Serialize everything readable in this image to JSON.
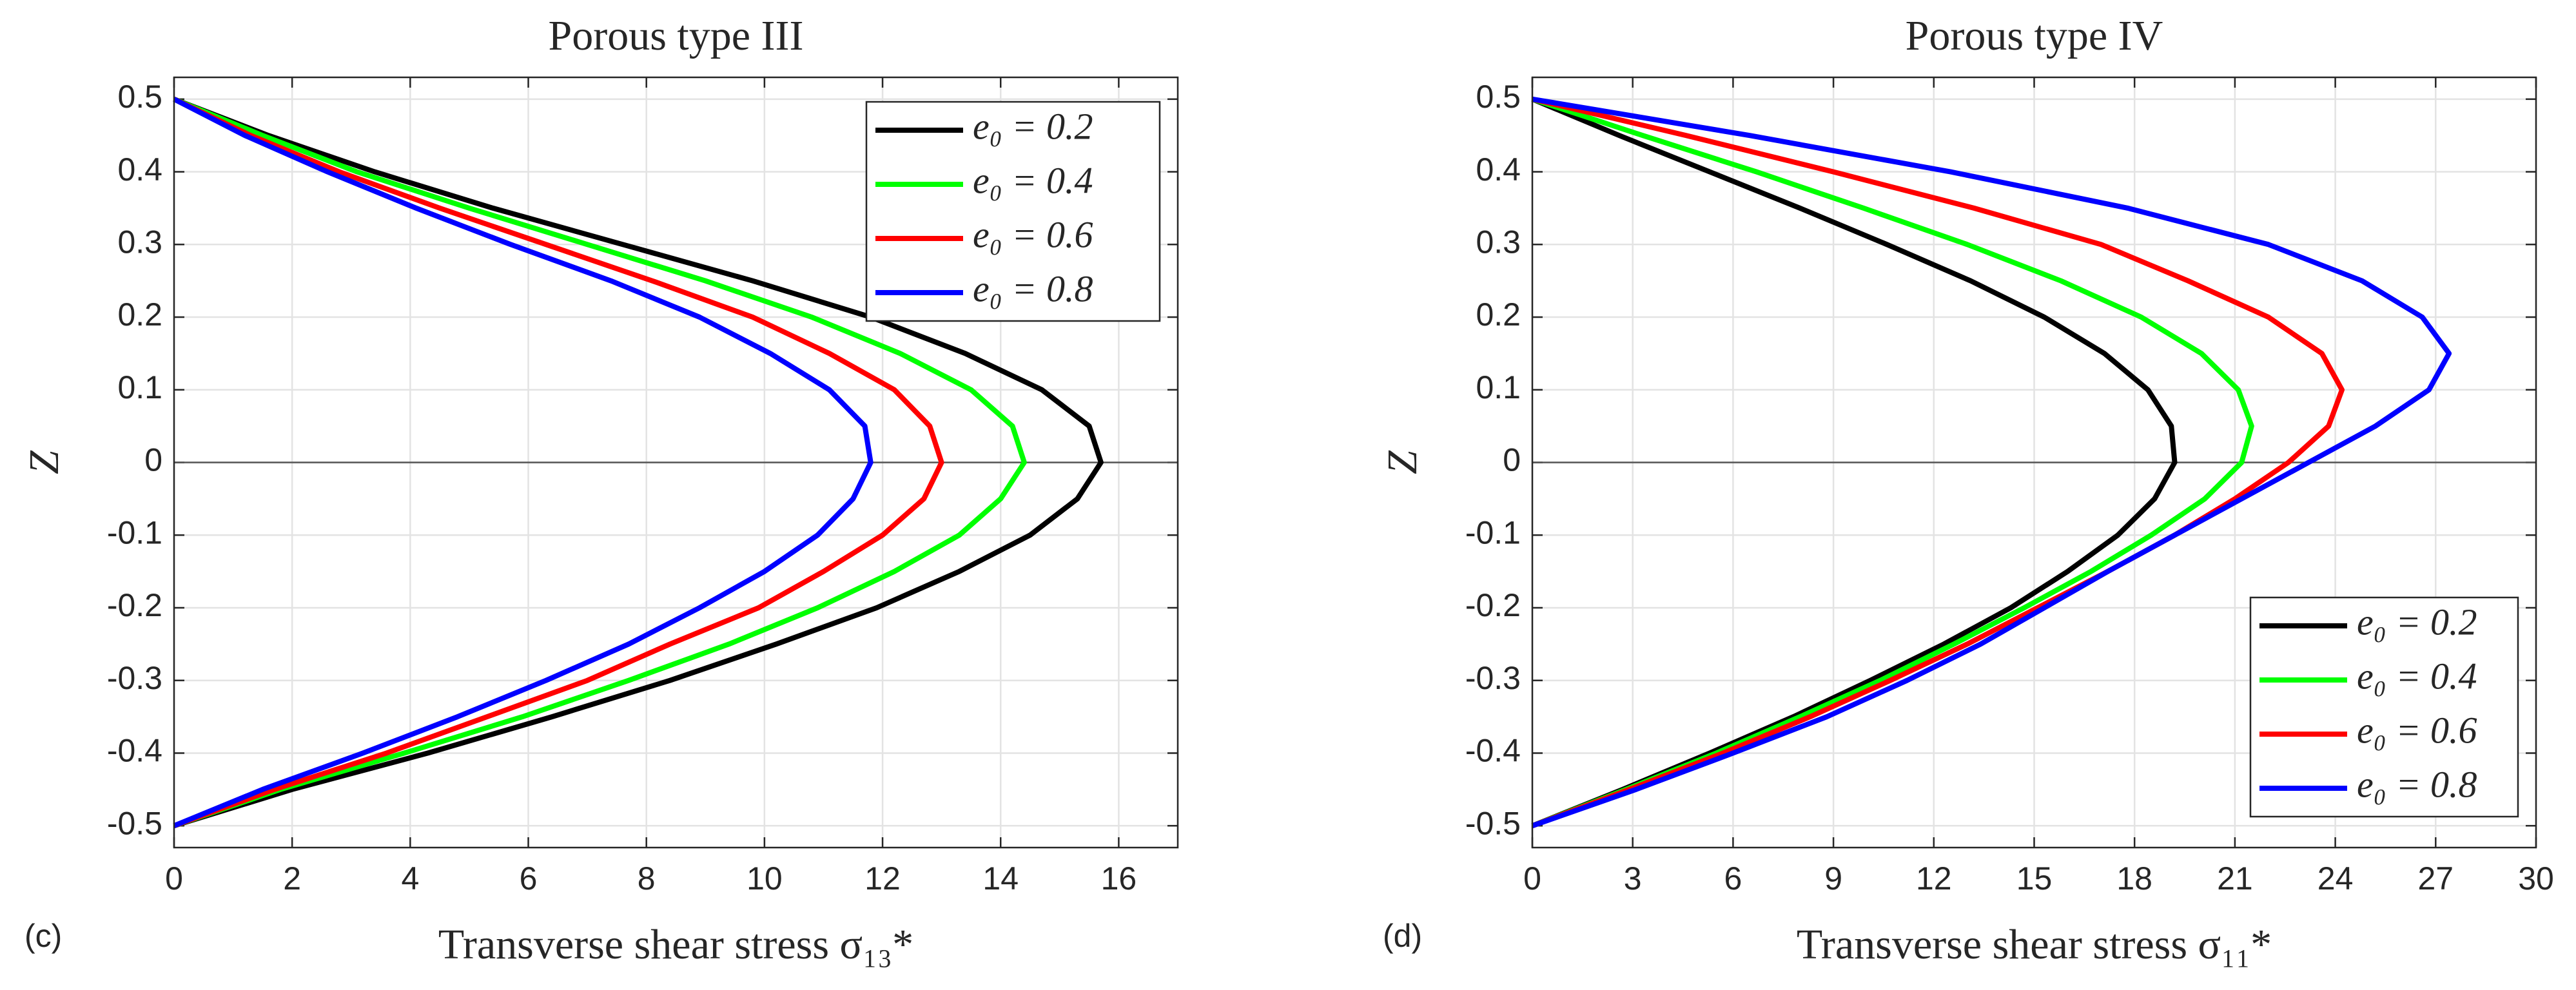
{
  "chart_data": [
    {
      "type": "line",
      "title": "Porous type III",
      "label": "(c)",
      "xlabel": "Transverse shear stress σ₁₃*",
      "ylabel": "Z",
      "y": [
        -0.5,
        -0.45,
        -0.4,
        -0.35,
        -0.3,
        -0.25,
        -0.2,
        -0.15,
        -0.1,
        -0.05,
        0,
        0.05,
        0.1,
        0.15,
        0.2,
        0.25,
        0.3,
        0.35,
        0.4,
        0.45,
        0.5
      ],
      "series": [
        {
          "name": "e₀ = 0.2",
          "color": "#000000",
          "values": [
            0,
            2.0,
            4.3,
            6.4,
            8.4,
            10.2,
            11.9,
            13.3,
            14.5,
            15.3,
            15.7,
            15.5,
            14.7,
            13.4,
            11.8,
            9.8,
            7.6,
            5.4,
            3.4,
            1.6,
            0
          ]
        },
        {
          "name": "e₀ = 0.4",
          "color": "#00ff00",
          "values": [
            0,
            1.8,
            3.9,
            5.9,
            7.7,
            9.4,
            10.9,
            12.2,
            13.3,
            14.0,
            14.4,
            14.2,
            13.5,
            12.3,
            10.8,
            9.0,
            7.0,
            5.0,
            3.1,
            1.5,
            0
          ]
        },
        {
          "name": "e₀ = 0.6",
          "color": "#ff0000",
          "values": [
            0,
            1.7,
            3.6,
            5.3,
            7.0,
            8.4,
            9.9,
            11.0,
            12.0,
            12.7,
            13.0,
            12.8,
            12.2,
            11.1,
            9.8,
            8.1,
            6.3,
            4.5,
            2.8,
            1.3,
            0
          ]
        },
        {
          "name": "e₀ = 0.8",
          "color": "#0000ff",
          "values": [
            0,
            1.5,
            3.2,
            4.8,
            6.3,
            7.7,
            8.9,
            10.0,
            10.9,
            11.5,
            11.8,
            11.7,
            11.1,
            10.1,
            8.9,
            7.4,
            5.7,
            4.1,
            2.6,
            1.2,
            0
          ]
        }
      ],
      "xlim": [
        0,
        17
      ],
      "xticks": [
        0,
        2,
        4,
        6,
        8,
        10,
        12,
        14,
        16
      ],
      "ylim": [
        -0.53,
        0.53
      ],
      "yticks": [
        -0.5,
        -0.4,
        -0.3,
        -0.2,
        -0.1,
        0,
        0.1,
        0.2,
        0.3,
        0.4,
        0.5
      ],
      "grid": true,
      "legend": "northeast"
    },
    {
      "type": "line",
      "title": "Porous type IV",
      "label": "(d)",
      "xlabel": "Transverse shear stress σ₁₁*",
      "ylabel": "Z",
      "y": [
        -0.5,
        -0.45,
        -0.4,
        -0.35,
        -0.3,
        -0.25,
        -0.2,
        -0.15,
        -0.1,
        -0.05,
        0,
        0.05,
        0.1,
        0.15,
        0.2,
        0.25,
        0.3,
        0.35,
        0.4,
        0.45,
        0.5
      ],
      "series": [
        {
          "name": "e₀ = 0.2",
          "color": "#000000",
          "values": [
            0,
            2.7,
            5.3,
            7.8,
            10.1,
            12.3,
            14.3,
            16.0,
            17.5,
            18.6,
            19.2,
            19.1,
            18.4,
            17.1,
            15.3,
            13.1,
            10.6,
            8.0,
            5.3,
            2.6,
            0
          ]
        },
        {
          "name": "e₀ = 0.4",
          "color": "#00ff00",
          "values": [
            0,
            2.8,
            5.5,
            8.0,
            10.4,
            12.6,
            14.7,
            16.7,
            18.5,
            20.1,
            21.2,
            21.5,
            21.1,
            20.0,
            18.2,
            15.8,
            13.0,
            9.9,
            6.7,
            3.3,
            0
          ]
        },
        {
          "name": "e₀ = 0.6",
          "color": "#ff0000",
          "values": [
            0,
            2.9,
            5.7,
            8.3,
            10.7,
            13.0,
            15.1,
            17.2,
            19.2,
            21.0,
            22.6,
            23.8,
            24.2,
            23.6,
            22.0,
            19.6,
            17.0,
            13.2,
            9.0,
            4.6,
            0
          ]
        },
        {
          "name": "e₀ = 0.8",
          "color": "#0000ff",
          "values": [
            0,
            3.1,
            6.0,
            8.8,
            11.2,
            13.4,
            15.3,
            17.2,
            19.2,
            21.2,
            23.2,
            25.2,
            26.8,
            27.4,
            26.6,
            24.8,
            22.0,
            17.8,
            12.5,
            6.5,
            0
          ]
        }
      ],
      "xlim": [
        0,
        30
      ],
      "xticks": [
        0,
        3,
        6,
        9,
        12,
        15,
        18,
        21,
        24,
        27,
        30
      ],
      "ylim": [
        -0.53,
        0.53
      ],
      "yticks": [
        -0.5,
        -0.4,
        -0.3,
        -0.2,
        -0.1,
        0,
        0.1,
        0.2,
        0.3,
        0.4,
        0.5
      ],
      "grid": true,
      "legend": "southeast"
    }
  ]
}
